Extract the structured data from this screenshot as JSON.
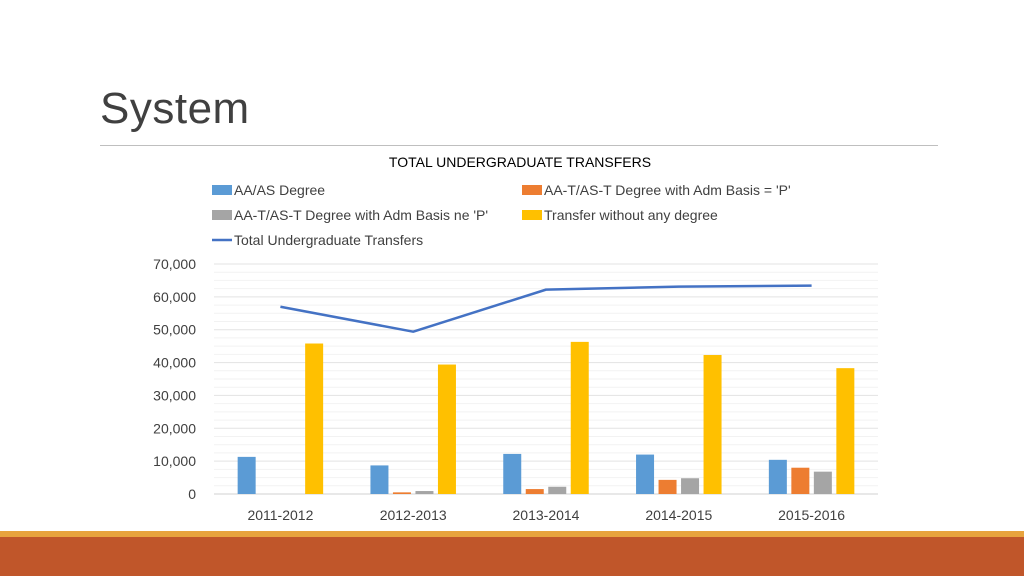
{
  "slide": {
    "title": "System"
  },
  "chart_data": {
    "type": "bar",
    "title": "TOTAL UNDERGRADUATE TRANSFERS",
    "categories": [
      "2011-2012",
      "2012-2013",
      "2013-2014",
      "2014-2015",
      "2015-2016"
    ],
    "series": [
      {
        "name": "AA/AS Degree",
        "color": "#5b9bd5",
        "type": "bar",
        "values": [
          11300,
          8700,
          12200,
          12000,
          10400
        ]
      },
      {
        "name": "AA-T/AS-T Degree with Adm Basis = 'P'",
        "color": "#ed7d31",
        "type": "bar",
        "values": [
          0,
          500,
          1500,
          4300,
          8000
        ]
      },
      {
        "name": "AA-T/AS-T Degree with Adm Basis ne 'P'",
        "color": "#a5a5a5",
        "type": "bar",
        "values": [
          0,
          900,
          2200,
          4800,
          6800
        ]
      },
      {
        "name": "Transfer without any degree",
        "color": "#ffc000",
        "type": "bar",
        "values": [
          45800,
          39400,
          46300,
          42300,
          38300
        ]
      },
      {
        "name": "Total Undergraduate Transfers",
        "color": "#4472c4",
        "type": "line",
        "values": [
          57000,
          49400,
          62200,
          63100,
          63400
        ]
      }
    ],
    "ylim": [
      0,
      70000
    ],
    "yticks": [
      0,
      10000,
      20000,
      30000,
      40000,
      50000,
      60000,
      70000
    ],
    "ytick_labels": [
      "0",
      "10,000",
      "20,000",
      "30,000",
      "40,000",
      "50,000",
      "60,000",
      "70,000"
    ],
    "grid": true,
    "legend_position": "top"
  }
}
